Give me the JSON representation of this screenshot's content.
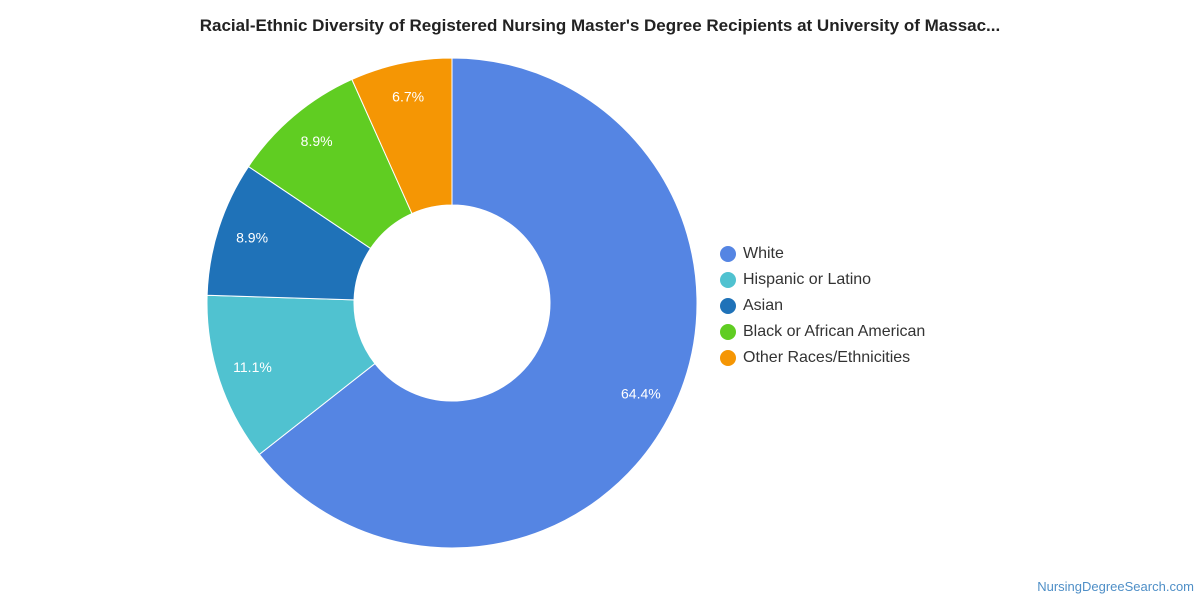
{
  "title": "Racial-Ethnic Diversity of Registered Nursing Master's Degree Recipients at University of Massac...",
  "chart_data": {
    "type": "pie",
    "variant": "donut",
    "legend_position": "right",
    "slices": [
      {
        "name": "White",
        "value": 64.4,
        "label": "64.4%",
        "color": "#5585e3"
      },
      {
        "name": "Hispanic or Latino",
        "value": 11.1,
        "label": "11.1%",
        "color": "#50c2d0"
      },
      {
        "name": "Asian",
        "value": 8.9,
        "label": "8.9%",
        "color": "#1f72b8"
      },
      {
        "name": "Black or African American",
        "value": 8.9,
        "label": "8.9%",
        "color": "#60cd22"
      },
      {
        "name": "Other Races/Ethnicities",
        "value": 6.7,
        "label": "6.7%",
        "color": "#f59604"
      }
    ]
  },
  "credit": "NursingDegreeSearch.com"
}
